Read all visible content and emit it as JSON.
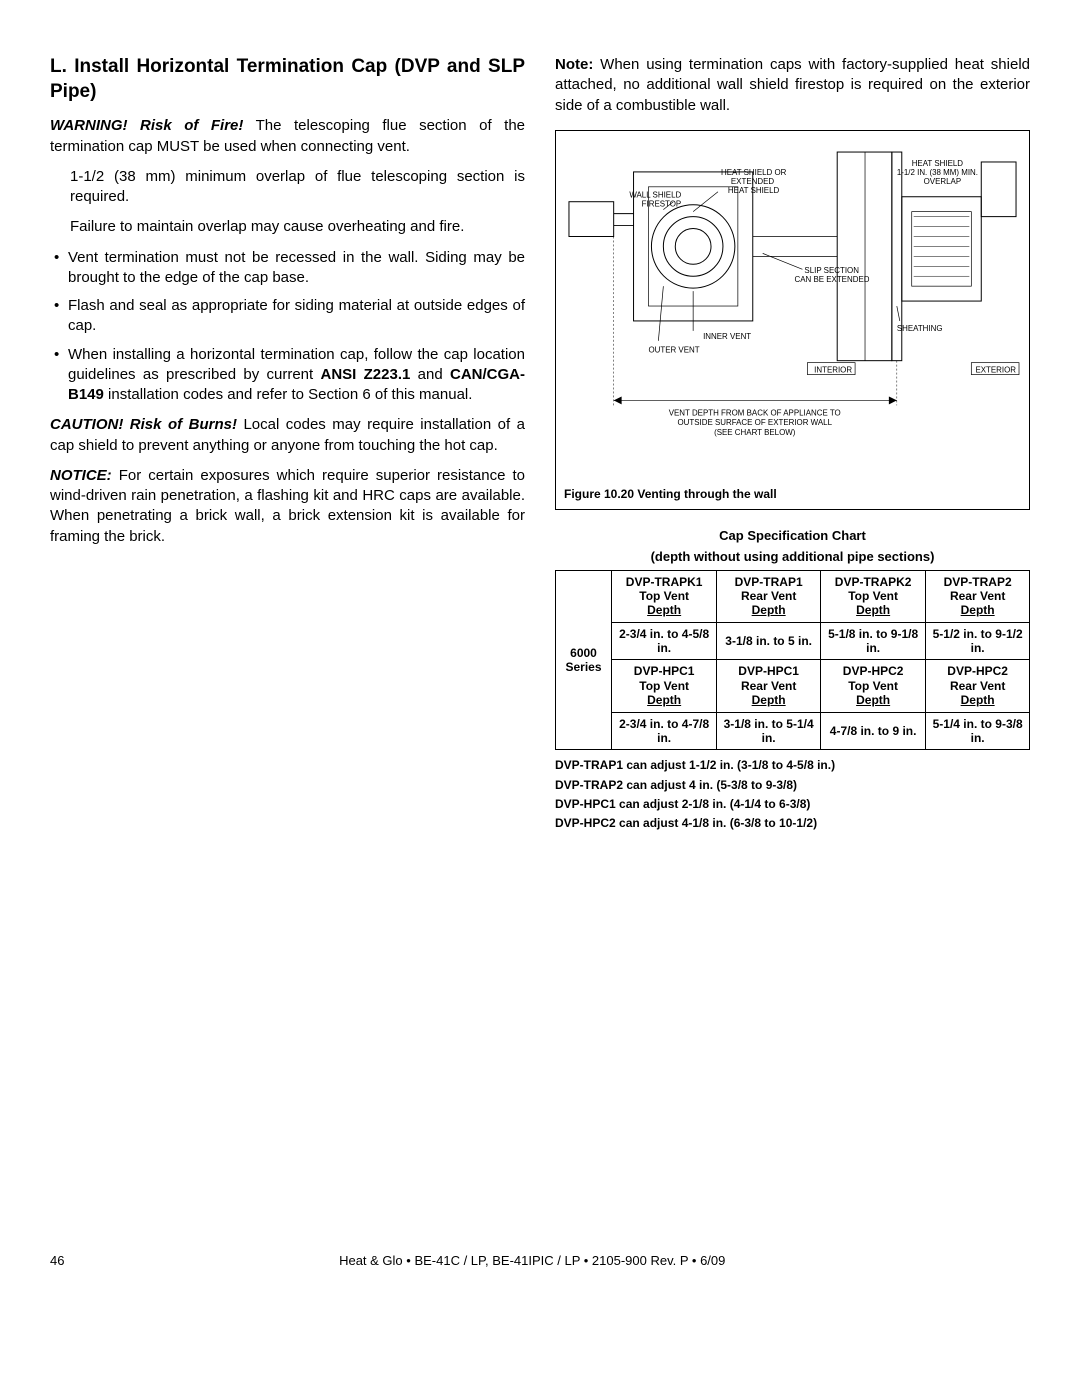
{
  "left": {
    "heading": "L. Install Horizontal Termination Cap (DVP and SLP Pipe)",
    "warn_label": "WARNING! Risk of Fire!",
    "warn_text": " The telescoping ﬂue section of the termination cap MUST be used when connecting vent.",
    "indent1": "1-1/2 (38 mm) minimum overlap of ﬂue telescoping section is required.",
    "indent2": "Failure to maintain overlap may cause overheating and ﬁre.",
    "bullets": [
      "Vent termination must not be recessed in the wall. Siding may be brought to the edge of the cap base.",
      "Flash and seal as appropriate for siding material at outside edges of cap.",
      "When installing a horizontal termination cap, follow the cap location guidelines as prescribed by current <b>ANSI Z223.1</b> and <b>CAN/CGA-B149</b> installation codes and refer to Section 6 of this manual."
    ],
    "caution_label": "CAUTION! Risk of Burns!",
    "caution_text": " Local codes may require installation of a cap shield to prevent anything or anyone from touching the hot cap.",
    "notice_label": "NOTICE:",
    "notice_text": " For certain exposures which require superior resistance to wind-driven rain penetration, a ﬂashing kit and HRC caps are available.  When penetrating a brick wall, a brick extension kit is available for framing the brick."
  },
  "right": {
    "note_label": "Note:",
    "note_text": " When using termination caps with factory-supplied heat shield attached, no additional wall shield ﬁrestop is required on the exterior side of a combustible wall.",
    "fig_labels": {
      "heat_shield_ext": "HEAT SHIELD OR\nEXTENDED\nHEAT SHIELD",
      "wall_shield": "WALL SHIELD\nFIRESTOP",
      "heat_shield_right": "HEAT SHIELD\n1-1/2 IN. (38 MM) MIN.\nOVERLAP",
      "slip": "SLIP SECTION\nCAN BE EXTENDED",
      "inner": "INNER VENT",
      "outer": "OUTER VENT",
      "interior": "INTERIOR",
      "sheathing": "SHEATHING",
      "exterior": "EXTERIOR",
      "bottom_note": "VENT DEPTH FROM BACK OF APPLIANCE TO\nOUTSIDE SURFACE OF EXTERIOR WALL\n(SEE CHART BELOW)"
    },
    "fig_caption": "Figure 10.20  Venting through the wall",
    "chart_title_1": "Cap Speciﬁcation Chart",
    "chart_title_2": "(depth without using additional pipe sections)",
    "table": {
      "row_label": "6000\nSeries",
      "hdr1": [
        "DVP-TRAPK1",
        "DVP-TRAP1",
        "DVP-TRAPK2",
        "DVP-TRAP2"
      ],
      "hdr1_sub": [
        "Top Vent",
        "Rear Vent",
        "Top Vent",
        "Rear Vent"
      ],
      "hdr1_depth": "Depth",
      "vals1": [
        "2-3/4 in. to 4-5/8 in.",
        "3-1/8 in. to 5 in.",
        "5-1/8 in. to 9-1/8 in.",
        "5-1/2 in. to 9-1/2 in."
      ],
      "hdr2": [
        "DVP-HPC1",
        "DVP-HPC1",
        "DVP-HPC2",
        "DVP-HPC2"
      ],
      "hdr2_sub": [
        "Top Vent",
        "Rear Vent",
        "Top Vent",
        "Rear Vent"
      ],
      "vals2": [
        "2-3/4 in. to 4-7/8 in.",
        "3-1/8 in. to 5-1/4 in.",
        "4-7/8 in. to 9 in.",
        "5-1/4 in. to 9-3/8 in."
      ]
    },
    "notes": [
      "DVP-TRAP1 can adjust 1-1/2 in. (3-1/8 to 4-5/8 in.)",
      "DVP-TRAP2 can adjust 4 in. (5-3/8 to 9-3/8)",
      "DVP-HPC1 can adjust 2-1/8 in. (4-1/4 to 6-3/8)",
      "DVP-HPC2 can adjust 4-1/8 in. (6-3/8 to 10-1/2)"
    ]
  },
  "footer": {
    "page": "46",
    "doc": "Heat & Glo  •  BE-41C / LP,   BE-41IPIC / LP  •  2105-900  Rev.  P  •  6/09"
  }
}
